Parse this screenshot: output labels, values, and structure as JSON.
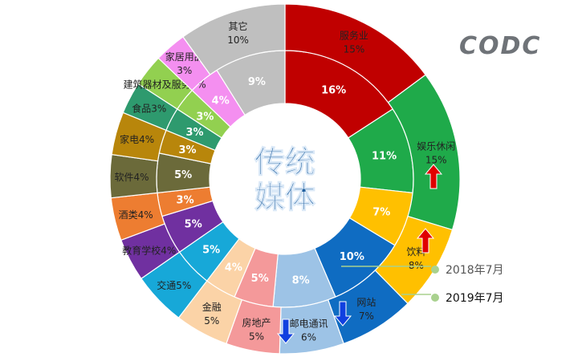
{
  "logo": "CODC",
  "center_title": [
    "传统",
    "媒体"
  ],
  "legend": {
    "inner": "2018年7月",
    "outer": "2019年7月"
  },
  "colors": {
    "服务业": "#c00000",
    "娱乐休闲": "#1faa4a",
    "饮料": "#ffc000",
    "网站": "#0f6cc2",
    "邮电通讯": "#9dc3e6",
    "房地产": "#f4999a",
    "金融": "#fbd3a7",
    "交通": "#17a8d8",
    "教育学校": "#7030a0",
    "酒类": "#ed7d31",
    "软件": "#6b6a3a",
    "家电": "#b8860b",
    "食品": "#2e9a6e",
    "建筑器材及服务": "#92d050",
    "家居用品": "#f48ff0",
    "其它": "#bfbfbf"
  },
  "chart_data": {
    "type": "donut",
    "categories": [
      "服务业",
      "娱乐休闲",
      "饮料",
      "网站",
      "邮电通讯",
      "房地产",
      "金融",
      "交通",
      "教育学校",
      "酒类",
      "软件",
      "家电",
      "食品",
      "建筑器材及服务",
      "家居用品",
      "其它"
    ],
    "series": [
      {
        "name": "2018年7月",
        "ring": "inner",
        "values": [
          16,
          11,
          7,
          10,
          8,
          5,
          4,
          5,
          5,
          3,
          5,
          3,
          3,
          3,
          4,
          9
        ],
        "labels": [
          "16%",
          "11%",
          "7%",
          "10%",
          "8%",
          "5%",
          "4%",
          "5%",
          "5%",
          "3%",
          "5%",
          "3%",
          "3%",
          "3%",
          "4%",
          "9%"
        ]
      },
      {
        "name": "2019年7月",
        "ring": "outer",
        "values": [
          15,
          15,
          8,
          7,
          6,
          5,
          5,
          5,
          4,
          4,
          4,
          4,
          3,
          3,
          3,
          10
        ],
        "labels": [
          "服务业|15%",
          "娱乐休闲|15%",
          "饮料|8%",
          "网站|7%",
          "邮电通讯|6%",
          "房地产|5%",
          "金融|5%",
          "交通5%",
          "教育学校4%",
          "酒类4%",
          "软件4%",
          "家电4%",
          "食品3%",
          "建筑器材及服务3%",
          "家居用品|3%",
          "其它|10%"
        ]
      }
    ],
    "trend_arrows": [
      {
        "category": "娱乐休闲",
        "direction": "up"
      },
      {
        "category": "饮料",
        "direction": "up"
      },
      {
        "category": "网站",
        "direction": "down"
      },
      {
        "category": "邮电通讯",
        "direction": "down"
      }
    ]
  }
}
